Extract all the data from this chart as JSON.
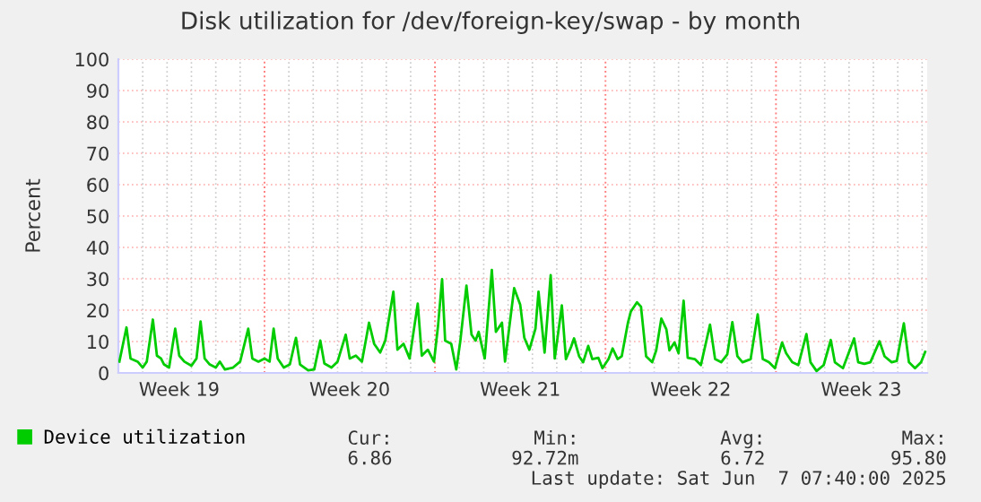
{
  "chart_data": {
    "type": "line",
    "title": "Disk utilization for /dev/foreign-key/swap - by month",
    "ylabel": "Percent",
    "x": [
      "2025-05-06T01:00",
      "2025-05-06T08:00",
      "2025-05-06T12:00",
      "2025-05-06T19:00",
      "2025-05-07T00:00",
      "2025-05-07T04:00",
      "2025-05-07T10:00",
      "2025-05-07T14:00",
      "2025-05-07T18:00",
      "2025-05-07T21:00",
      "2025-05-08T02:00",
      "2025-05-08T08:00",
      "2025-05-08T12:00",
      "2025-05-08T17:00",
      "2025-05-09T00:00",
      "2025-05-09T05:00",
      "2025-05-09T09:00",
      "2025-05-09T13:00",
      "2025-05-09T18:00",
      "2025-05-10T00:00",
      "2025-05-10T04:00",
      "2025-05-10T09:00",
      "2025-05-10T17:00",
      "2025-05-11T00:00",
      "2025-05-11T08:00",
      "2025-05-11T12:00",
      "2025-05-11T18:00",
      "2025-05-12T00:00",
      "2025-05-12T05:00",
      "2025-05-12T09:00",
      "2025-05-12T13:00",
      "2025-05-12T19:00",
      "2025-05-13T01:00",
      "2025-05-13T07:00",
      "2025-05-13T11:00",
      "2025-05-13T19:00",
      "2025-05-14T01:00",
      "2025-05-14T07:00",
      "2025-05-14T11:00",
      "2025-05-14T18:00",
      "2025-05-15T00:00",
      "2025-05-15T08:00",
      "2025-05-15T12:00",
      "2025-05-15T18:00",
      "2025-05-16T00:00",
      "2025-05-16T07:00",
      "2025-05-16T12:00",
      "2025-05-16T18:00",
      "2025-05-16T23:00",
      "2025-05-17T07:00",
      "2025-05-17T11:00",
      "2025-05-17T17:00",
      "2025-05-17T23:00",
      "2025-05-18T07:00",
      "2025-05-18T11:00",
      "2025-05-18T17:00",
      "2025-05-18T23:00",
      "2025-05-19T03:00",
      "2025-05-19T07:00",
      "2025-05-19T10:00",
      "2025-05-19T16:00",
      "2025-05-19T21:00",
      "2025-05-20T01:00",
      "2025-05-20T07:00",
      "2025-05-20T12:00",
      "2025-05-20T16:00",
      "2025-05-20T19:00",
      "2025-05-21T01:00",
      "2025-05-21T08:00",
      "2025-05-21T12:00",
      "2025-05-21T18:00",
      "2025-05-21T21:00",
      "2025-05-22T06:00",
      "2025-05-22T12:00",
      "2025-05-22T16:00",
      "2025-05-22T21:00",
      "2025-05-23T03:00",
      "2025-05-23T06:00",
      "2025-05-23T12:00",
      "2025-05-23T18:00",
      "2025-05-23T22:00",
      "2025-05-24T05:00",
      "2025-05-24T09:00",
      "2025-05-24T14:00",
      "2025-05-24T17:00",
      "2025-05-24T22:00",
      "2025-05-25T02:00",
      "2025-05-25T07:00",
      "2025-05-25T11:00",
      "2025-05-25T17:00",
      "2025-05-25T21:00",
      "2025-05-26T03:00",
      "2025-05-26T07:00",
      "2025-05-26T12:00",
      "2025-05-26T16:00",
      "2025-05-26T22:00",
      "2025-05-27T01:00",
      "2025-05-27T07:00",
      "2025-05-27T11:00",
      "2025-05-27T16:00",
      "2025-05-27T22:00",
      "2025-05-28T02:00",
      "2025-05-28T07:00",
      "2025-05-28T12:00",
      "2025-05-28T15:00",
      "2025-05-28T20:00",
      "2025-05-29T00:00",
      "2025-05-29T05:00",
      "2025-05-29T09:00",
      "2025-05-29T16:00",
      "2025-05-29T22:00",
      "2025-05-30T07:00",
      "2025-05-30T12:00",
      "2025-05-30T18:00",
      "2025-05-31T00:00",
      "2025-05-31T05:00",
      "2025-05-31T10:00",
      "2025-05-31T15:00",
      "2025-05-31T23:00",
      "2025-06-01T06:00",
      "2025-06-01T11:00",
      "2025-06-01T17:00",
      "2025-06-01T23:00",
      "2025-06-02T06:00",
      "2025-06-02T10:00",
      "2025-06-02T16:00",
      "2025-06-02T22:00",
      "2025-06-03T06:00",
      "2025-06-03T10:00",
      "2025-06-03T16:00",
      "2025-06-03T23:00",
      "2025-06-04T06:00",
      "2025-06-04T10:00",
      "2025-06-04T18:00",
      "2025-06-05T05:00",
      "2025-06-05T09:00",
      "2025-06-05T15:00",
      "2025-06-05T21:00",
      "2025-06-06T06:00",
      "2025-06-06T11:00",
      "2025-06-06T18:00",
      "2025-06-06T23:00",
      "2025-06-07T06:00",
      "2025-06-07T11:00",
      "2025-06-07T17:00",
      "2025-06-07T23:00",
      "2025-06-08T03:00"
    ],
    "series": [
      {
        "name": "Device utilization",
        "color": "#00cc00",
        "values": [
          3.6,
          14.5,
          4.6,
          3.6,
          1.7,
          3.6,
          17.0,
          5.5,
          4.6,
          2.7,
          1.7,
          14.1,
          5.5,
          3.6,
          2.3,
          4.6,
          16.4,
          4.6,
          2.7,
          1.7,
          3.6,
          1.1,
          1.7,
          3.6,
          14.1,
          4.6,
          3.6,
          4.6,
          3.6,
          14.1,
          4.6,
          1.7,
          2.7,
          11.2,
          2.7,
          0.8,
          1.1,
          10.3,
          3.0,
          1.7,
          3.6,
          12.2,
          4.6,
          5.5,
          3.6,
          16.0,
          9.3,
          6.5,
          10.3,
          25.9,
          7.4,
          9.3,
          4.6,
          22.1,
          5.5,
          7.4,
          3.6,
          15.0,
          29.9,
          10.3,
          9.3,
          1.1,
          10.3,
          27.8,
          12.2,
          10.3,
          13.1,
          4.6,
          32.8,
          13.1,
          16.0,
          3.6,
          27.0,
          21.7,
          11.2,
          7.4,
          14.1,
          25.9,
          6.5,
          31.2,
          4.6,
          21.5,
          4.4,
          8.2,
          11.0,
          5.3,
          3.4,
          8.6,
          4.4,
          4.8,
          1.5,
          4.4,
          7.8,
          4.4,
          5.3,
          15.8,
          19.6,
          22.5,
          21.1,
          5.3,
          3.4,
          7.2,
          17.3,
          13.9,
          7.2,
          9.7,
          6.3,
          23.0,
          4.8,
          4.4,
          2.5,
          15.4,
          4.4,
          3.4,
          5.9,
          16.2,
          5.3,
          3.4,
          4.4,
          18.7,
          4.4,
          3.4,
          1.5,
          9.7,
          6.3,
          3.4,
          2.5,
          12.4,
          3.4,
          0.6,
          2.5,
          10.5,
          3.4,
          1.5,
          11.0,
          3.4,
          2.9,
          3.4,
          10.1,
          5.3,
          3.4,
          3.8,
          15.8,
          3.4,
          1.5,
          3.4,
          6.7
        ]
      }
    ],
    "xlim": [
      "2025-05-06",
      "2025-06-08T05:00"
    ],
    "xticks": [
      {
        "value": "2025-05-08T12:00",
        "label": "Week 19"
      },
      {
        "value": "2025-05-15T12:00",
        "label": "Week 20"
      },
      {
        "value": "2025-05-22T12:00",
        "label": "Week 21"
      },
      {
        "value": "2025-05-29T12:00",
        "label": "Week 22"
      },
      {
        "value": "2025-06-05T12:00",
        "label": "Week 23"
      },
      {
        "value": "2025-05-07",
        "label": null
      },
      {
        "value": "2025-05-08",
        "label": null
      },
      {
        "value": "2025-05-09",
        "label": null
      },
      {
        "value": "2025-05-10",
        "label": null
      },
      {
        "value": "2025-05-11",
        "label": null
      },
      {
        "value": "2025-05-13",
        "label": null
      },
      {
        "value": "2025-05-14",
        "label": null
      },
      {
        "value": "2025-05-15",
        "label": null
      },
      {
        "value": "2025-05-16",
        "label": null
      },
      {
        "value": "2025-05-17",
        "label": null
      },
      {
        "value": "2025-05-18",
        "label": null
      },
      {
        "value": "2025-05-20",
        "label": null
      },
      {
        "value": "2025-05-21",
        "label": null
      },
      {
        "value": "2025-05-22",
        "label": null
      },
      {
        "value": "2025-05-23",
        "label": null
      },
      {
        "value": "2025-05-24",
        "label": null
      },
      {
        "value": "2025-05-25",
        "label": null
      },
      {
        "value": "2025-05-27",
        "label": null
      },
      {
        "value": "2025-05-28",
        "label": null
      },
      {
        "value": "2025-05-29",
        "label": null
      },
      {
        "value": "2025-05-30",
        "label": null
      },
      {
        "value": "2025-05-31",
        "label": null
      },
      {
        "value": "2025-06-01",
        "label": null
      },
      {
        "value": "2025-06-03",
        "label": null
      },
      {
        "value": "2025-06-04",
        "label": null
      },
      {
        "value": "2025-06-05",
        "label": null
      },
      {
        "value": "2025-06-06",
        "label": null
      },
      {
        "value": "2025-06-07",
        "label": null
      },
      {
        "value": "2025-06-08",
        "label": null
      }
    ],
    "ylim": [
      0,
      100
    ],
    "yticks": [
      0,
      10,
      20,
      30,
      40,
      50,
      60,
      70,
      80,
      90,
      100
    ],
    "ref_lines": [
      {
        "axis": "x",
        "value": "2025-05-12",
        "color": "#ff8080",
        "line_style": "dotted"
      },
      {
        "axis": "x",
        "value": "2025-05-19",
        "color": "#ff8080",
        "line_style": "dotted"
      },
      {
        "axis": "x",
        "value": "2025-05-26",
        "color": "#ff8080",
        "line_style": "dotted"
      },
      {
        "axis": "x",
        "value": "2025-06-02",
        "color": "#ff8080",
        "line_style": "dotted"
      }
    ],
    "grid": true,
    "legend": "bottom",
    "marker": "none",
    "line_style": "solid",
    "annotations": [
      "Cur:",
      "Min:",
      "Avg:",
      "Max:",
      "6.86",
      "92.72m",
      "6.72",
      "95.80",
      "Last update: Sat Jun  7 07:40:00 2025"
    ]
  }
}
